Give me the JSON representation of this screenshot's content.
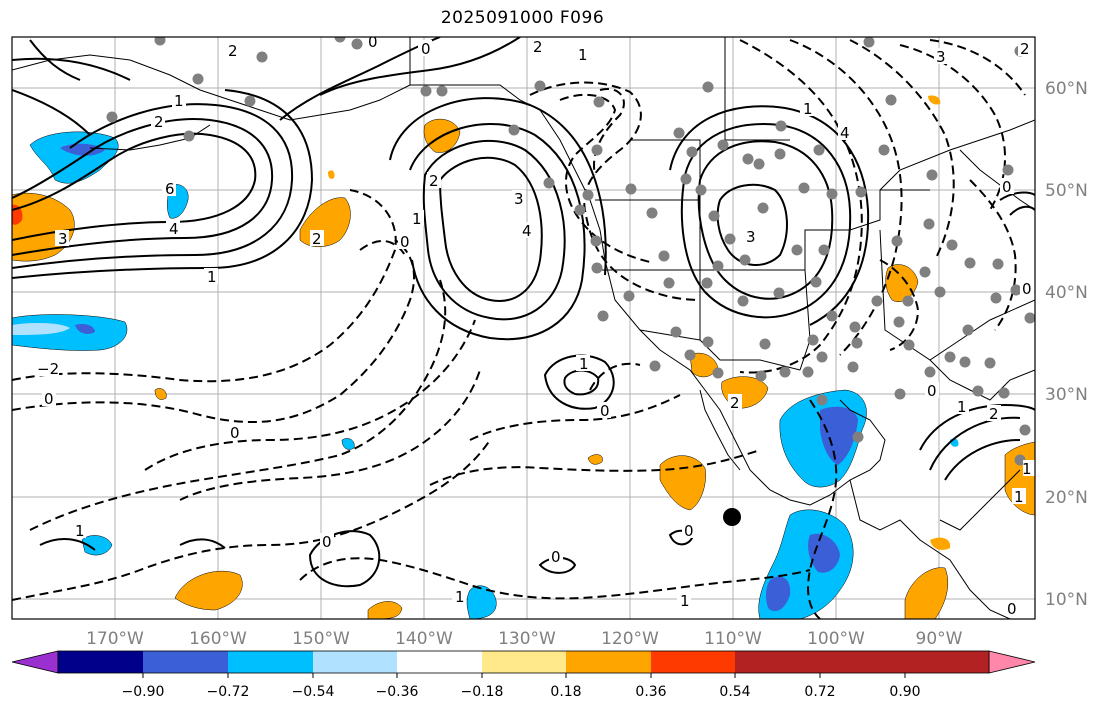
{
  "title": "2025091000 F096",
  "longitude_ticks": [
    "170°W",
    "160°W",
    "150°W",
    "140°W",
    "130°W",
    "120°W",
    "110°W",
    "100°W",
    "90°W"
  ],
  "latitude_ticks": [
    "60°N",
    "50°N",
    "40°N",
    "30°N",
    "20°N",
    "10°N"
  ],
  "colorbar": {
    "ticks": [
      "−0.90",
      "−0.72",
      "−0.54",
      "−0.36",
      "−0.18",
      "0.18",
      "0.36",
      "0.54",
      "0.72",
      "0.90"
    ],
    "colors": [
      "#9b30d0",
      "#00008b",
      "#3b5fd6",
      "#00bfff",
      "#b0e2ff",
      "#ffffff",
      "#ffe98a",
      "#ffa500",
      "#ff3a00",
      "#b22222",
      "#ff88aa"
    ]
  },
  "contour_labels": [
    "2",
    "1",
    "2",
    "6",
    "4",
    "3",
    "1",
    "0",
    "2",
    "3",
    "4",
    "1",
    "0",
    "3",
    "2",
    "0",
    "1",
    "0",
    "−2",
    "0",
    "0",
    "1",
    "0",
    "1",
    "0",
    "2",
    "1",
    "2",
    "1",
    "1",
    "0",
    "0",
    "0",
    "1",
    "2",
    "1",
    "0",
    "2",
    "4",
    "3",
    "1",
    "0"
  ],
  "marked_location": "storm-center-marker",
  "colors": {
    "positive_shading": "#ffa500",
    "negative_shading": "#00bfff",
    "gridlines": "#b0b0b0",
    "markers": "#808080"
  }
}
